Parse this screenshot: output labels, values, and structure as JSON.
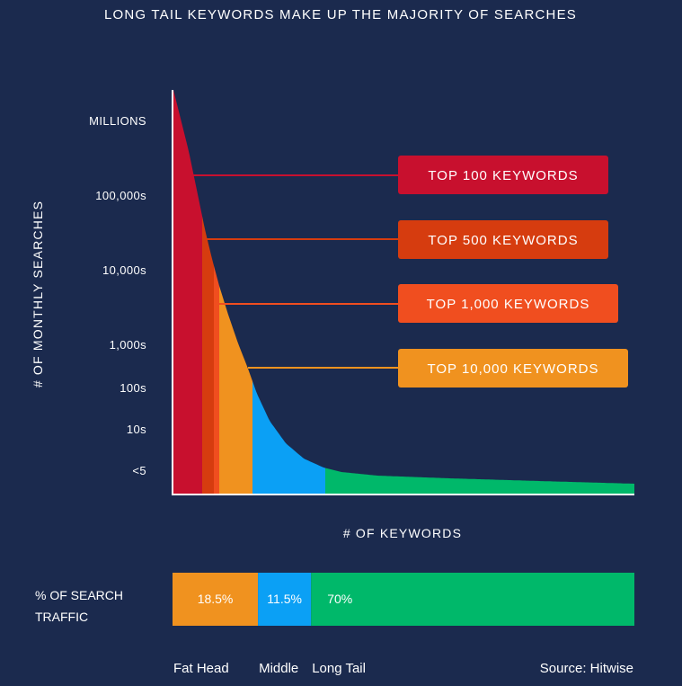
{
  "chart_data": {
    "type": "area",
    "title": "LONG TAIL KEYWORDS MAKE UP THE MAJORITY OF SEARCHES",
    "xlabel": "# OF KEYWORDS",
    "ylabel": "# OF MONTHLY SEARCHES",
    "y_ticks": [
      "MILLIONS",
      "100,000s",
      "10,000s",
      "1,000s",
      "100s",
      "10s",
      "<5"
    ],
    "callouts": [
      {
        "label": "TOP 100 KEYWORDS",
        "color": "#c8102e"
      },
      {
        "label": "TOP 500 KEYWORDS",
        "color": "#d63c0f"
      },
      {
        "label": "TOP 1,000 KEYWORDS",
        "color": "#f04e1f"
      },
      {
        "label": "TOP 10,000 KEYWORDS",
        "color": "#f0921f"
      }
    ],
    "curve_segments": [
      {
        "name": "Top 100",
        "color": "#c8102e"
      },
      {
        "name": "Top 500",
        "color": "#d63c0f"
      },
      {
        "name": "Top 1,000",
        "color": "#f04e1f"
      },
      {
        "name": "Top 10,000",
        "color": "#f0921f"
      },
      {
        "name": "Middle",
        "color": "#0ba0f5"
      },
      {
        "name": "Long Tail",
        "color": "#00b86a"
      }
    ],
    "traffic_share": {
      "label_line1": "% OF SEARCH",
      "label_line2": "TRAFFIC",
      "segments": [
        {
          "name": "Fat Head",
          "value": 18.5,
          "label": "18.5%",
          "color": "#f0921f"
        },
        {
          "name": "Middle",
          "value": 11.5,
          "label": "11.5%",
          "color": "#0ba0f5"
        },
        {
          "name": "Long Tail",
          "value": 70,
          "label": "70%",
          "color": "#00b86a"
        }
      ]
    },
    "source": "Source: Hitwise"
  }
}
